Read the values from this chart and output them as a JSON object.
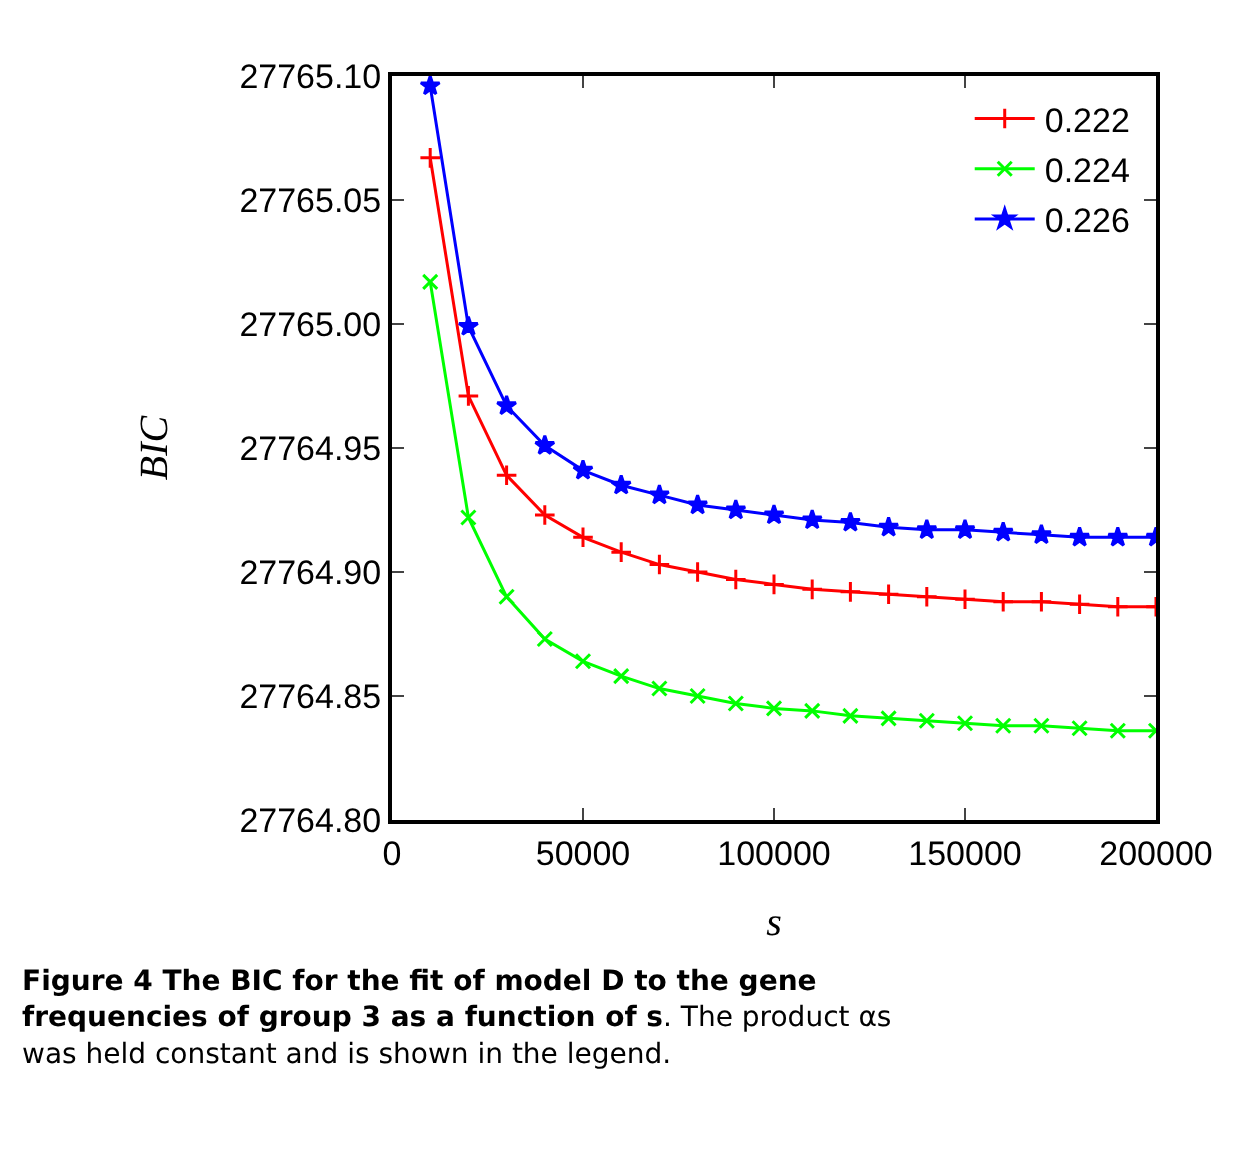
{
  "chart_data": {
    "type": "line",
    "xlabel": "s",
    "ylabel": "BIC",
    "x": [
      10000,
      20000,
      30000,
      40000,
      50000,
      60000,
      70000,
      80000,
      90000,
      100000,
      110000,
      120000,
      130000,
      140000,
      150000,
      160000,
      170000,
      180000,
      190000,
      200000
    ],
    "series": [
      {
        "name": "0.222",
        "color": "#ff0000",
        "marker": "cross",
        "values": [
          27765.067,
          27764.971,
          27764.939,
          27764.923,
          27764.914,
          27764.908,
          27764.903,
          27764.9,
          27764.897,
          27764.895,
          27764.893,
          27764.892,
          27764.891,
          27764.89,
          27764.889,
          27764.888,
          27764.888,
          27764.887,
          27764.886,
          27764.886
        ]
      },
      {
        "name": "0.224",
        "color": "#00ff00",
        "marker": "x",
        "values": [
          27765.017,
          27764.922,
          27764.89,
          27764.873,
          27764.864,
          27764.858,
          27764.853,
          27764.85,
          27764.847,
          27764.845,
          27764.844,
          27764.842,
          27764.841,
          27764.84,
          27764.839,
          27764.838,
          27764.838,
          27764.837,
          27764.836,
          27764.836
        ]
      },
      {
        "name": "0.226",
        "color": "#0000ff",
        "marker": "star",
        "values": [
          27765.096,
          27764.999,
          27764.967,
          27764.951,
          27764.941,
          27764.935,
          27764.931,
          27764.927,
          27764.925,
          27764.923,
          27764.921,
          27764.92,
          27764.918,
          27764.917,
          27764.917,
          27764.916,
          27764.915,
          27764.914,
          27764.914,
          27764.914
        ]
      }
    ],
    "xlim": [
      0,
      200000
    ],
    "xticks": [
      0,
      50000,
      100000,
      150000,
      200000
    ],
    "ylim": [
      27764.8,
      27765.1
    ],
    "yticks": [
      {
        "value": 27764.8,
        "label": "27764.80"
      },
      {
        "value": 27764.85,
        "label": "27764.85"
      },
      {
        "value": 27764.9,
        "label": "27764.90"
      },
      {
        "value": 27764.95,
        "label": "27764.95"
      },
      {
        "value": 27765.0,
        "label": "27765.00"
      },
      {
        "value": 27765.05,
        "label": "27765.05"
      },
      {
        "value": 27765.1,
        "label": "27765.10"
      }
    ],
    "legend": "top right",
    "annotations": [
      "Figure 4 The BIC for the fit of model D to the gene frequencies of group 3 as a function of s",
      ". The product αs was held constant and is shown in the legend."
    ]
  }
}
